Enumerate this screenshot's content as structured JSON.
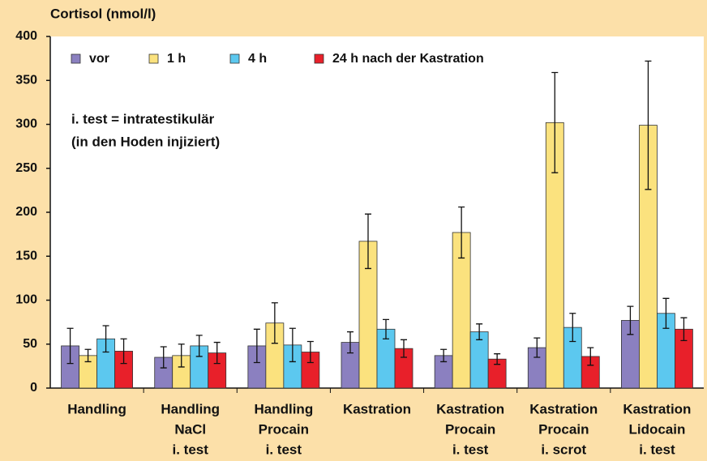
{
  "chart_data": {
    "type": "bar",
    "y_label": "Cortisol (nmol/l)",
    "annotations": [
      "i. test = intratestikulär",
      "(in den Hoden injiziert)"
    ],
    "categories": [
      [
        "Handling"
      ],
      [
        "Handling",
        "NaCl",
        "i. test"
      ],
      [
        "Handling",
        "Procain",
        "i. test"
      ],
      [
        "Kastration"
      ],
      [
        "Kastration",
        "Procain",
        "i. test"
      ],
      [
        "Kastration",
        "Procain",
        "i. scrot"
      ],
      [
        "Kastration",
        "Lidocain",
        "i. test"
      ]
    ],
    "series": [
      {
        "name": "vor",
        "color": "#8b80c0",
        "values": [
          48,
          35,
          48,
          52,
          37,
          46,
          77
        ],
        "errors": [
          20,
          12,
          19,
          12,
          7,
          11,
          16
        ]
      },
      {
        "name": "1 h",
        "color": "#fbe27e",
        "values": [
          37,
          37,
          74,
          167,
          177,
          302,
          299
        ],
        "errors": [
          7,
          13,
          23,
          31,
          29,
          57,
          73
        ]
      },
      {
        "name": "4 h",
        "color": "#5cc8ef",
        "values": [
          56,
          48,
          49,
          67,
          64,
          69,
          85
        ],
        "errors": [
          15,
          12,
          19,
          11,
          9,
          16,
          17
        ]
      },
      {
        "name": "24 h nach der Kastration",
        "color": "#e8202a",
        "values": [
          42,
          40,
          41,
          45,
          33,
          36,
          67
        ],
        "errors": [
          14,
          12,
          12,
          10,
          6,
          10,
          13
        ]
      }
    ],
    "ylim": [
      0,
      400
    ],
    "yticks": [
      0,
      50,
      100,
      150,
      200,
      250,
      300,
      350,
      400
    ],
    "grid": false,
    "legend": "top"
  }
}
